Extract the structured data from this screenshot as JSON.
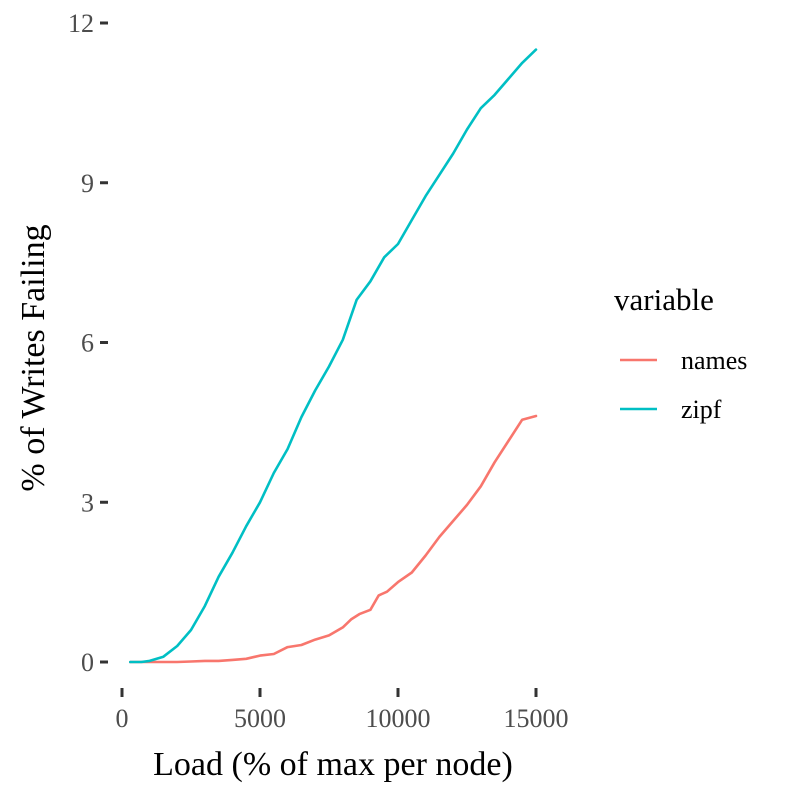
{
  "chart_data": {
    "type": "line",
    "xlabel": "Load (% of max per node)",
    "ylabel": "% of Writes Failing",
    "xlim": [
      0,
      15000
    ],
    "ylim": [
      0,
      12
    ],
    "x_ticks": [
      0,
      5000,
      10000,
      15000
    ],
    "x_tick_labels": [
      "0",
      "5000",
      "10000",
      "15000"
    ],
    "y_ticks": [
      0,
      3,
      6,
      9,
      12
    ],
    "y_tick_labels": [
      "0",
      "3",
      "6",
      "9",
      "12"
    ],
    "grid": false,
    "legend": {
      "title": "variable",
      "position": "right"
    },
    "series": [
      {
        "name": "names",
        "color": "#F8766D",
        "points": [
          [
            300,
            0
          ],
          [
            1000,
            0
          ],
          [
            1500,
            0
          ],
          [
            2000,
            0
          ],
          [
            2500,
            0.01
          ],
          [
            3000,
            0.02
          ],
          [
            3500,
            0.02
          ],
          [
            4000,
            0.04
          ],
          [
            4500,
            0.06
          ],
          [
            5000,
            0.12
          ],
          [
            5500,
            0.15
          ],
          [
            6000,
            0.28
          ],
          [
            6500,
            0.32
          ],
          [
            7000,
            0.42
          ],
          [
            7500,
            0.5
          ],
          [
            8000,
            0.65
          ],
          [
            8300,
            0.8
          ],
          [
            8600,
            0.9
          ],
          [
            9000,
            0.98
          ],
          [
            9300,
            1.25
          ],
          [
            9600,
            1.32
          ],
          [
            10000,
            1.5
          ],
          [
            10500,
            1.68
          ],
          [
            11000,
            2.0
          ],
          [
            11500,
            2.35
          ],
          [
            12000,
            2.65
          ],
          [
            12500,
            2.95
          ],
          [
            13000,
            3.3
          ],
          [
            13500,
            3.75
          ],
          [
            14000,
            4.15
          ],
          [
            14500,
            4.55
          ],
          [
            15000,
            4.62
          ]
        ]
      },
      {
        "name": "zipf",
        "color": "#00BFC4",
        "points": [
          [
            300,
            0
          ],
          [
            700,
            0
          ],
          [
            1000,
            0.02
          ],
          [
            1500,
            0.1
          ],
          [
            2000,
            0.3
          ],
          [
            2500,
            0.6
          ],
          [
            3000,
            1.05
          ],
          [
            3500,
            1.6
          ],
          [
            4000,
            2.05
          ],
          [
            4500,
            2.55
          ],
          [
            5000,
            3.0
          ],
          [
            5500,
            3.55
          ],
          [
            6000,
            4.0
          ],
          [
            6500,
            4.6
          ],
          [
            7000,
            5.1
          ],
          [
            7500,
            5.55
          ],
          [
            8000,
            6.05
          ],
          [
            8500,
            6.8
          ],
          [
            9000,
            7.15
          ],
          [
            9500,
            7.6
          ],
          [
            10000,
            7.85
          ],
          [
            10500,
            8.3
          ],
          [
            11000,
            8.75
          ],
          [
            11500,
            9.15
          ],
          [
            12000,
            9.55
          ],
          [
            12500,
            10.0
          ],
          [
            13000,
            10.4
          ],
          [
            13500,
            10.65
          ],
          [
            14000,
            10.95
          ],
          [
            14500,
            11.25
          ],
          [
            15000,
            11.5
          ]
        ]
      }
    ]
  }
}
